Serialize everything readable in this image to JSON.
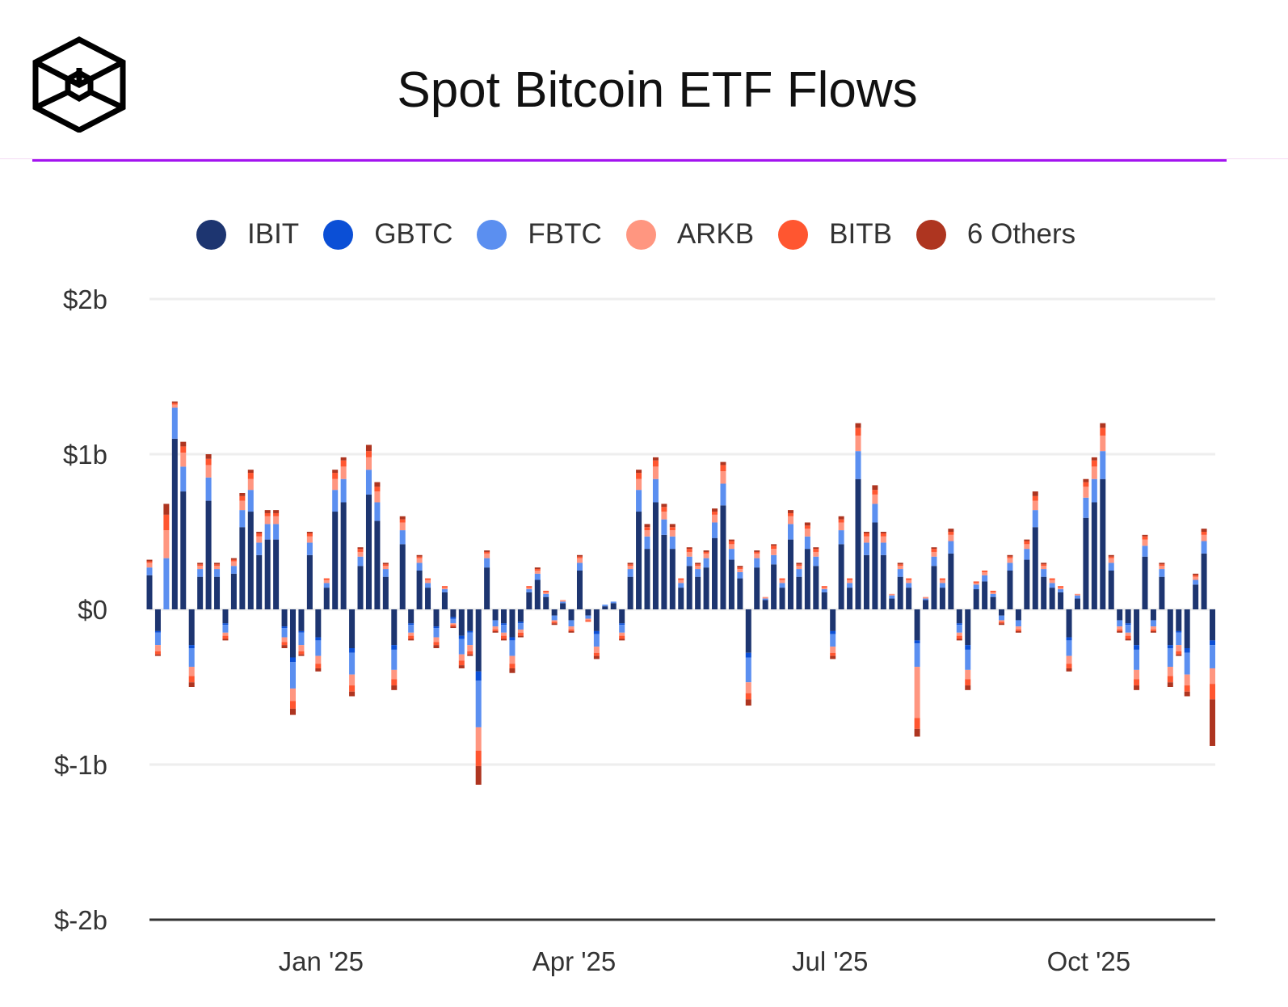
{
  "header": {
    "title": "Spot Bitcoin ETF Flows"
  },
  "colors": {
    "accent": "#a313f0"
  },
  "chart_data": {
    "type": "bar",
    "stacked": true,
    "title": "Spot Bitcoin ETF Flows",
    "xlabel": "",
    "ylabel": "",
    "units": "USD millions",
    "xlim": [
      "2024-11-01",
      "2025-11-15"
    ],
    "ylim": [
      -2000,
      2000
    ],
    "y_ticks": [
      2000,
      1000,
      0,
      -1000,
      -2000
    ],
    "y_tick_labels": [
      "$2b",
      "$1b",
      "$0",
      "$-1b",
      "$-2b"
    ],
    "x_ticks": [
      "2025-01-01",
      "2025-04-01",
      "2025-07-01",
      "2025-10-01"
    ],
    "x_tick_labels": [
      "Jan '25",
      "Apr '25",
      "Jul '25",
      "Oct '25"
    ],
    "grid": true,
    "legend_position": "top",
    "dates": [
      "2024-11-01",
      "2024-11-04",
      "2024-11-07",
      "2024-11-10",
      "2024-11-13",
      "2024-11-16",
      "2024-11-19",
      "2024-11-22",
      "2024-11-25",
      "2024-11-28",
      "2024-12-01",
      "2024-12-04",
      "2024-12-07",
      "2024-12-10",
      "2024-12-13",
      "2024-12-16",
      "2024-12-19",
      "2024-12-22",
      "2024-12-25",
      "2024-12-28",
      "2024-12-31",
      "2025-01-03",
      "2025-01-06",
      "2025-01-09",
      "2025-01-12",
      "2025-01-15",
      "2025-01-18",
      "2025-01-21",
      "2025-01-24",
      "2025-01-27",
      "2025-01-30",
      "2025-02-02",
      "2025-02-05",
      "2025-02-08",
      "2025-02-11",
      "2025-02-14",
      "2025-02-17",
      "2025-02-20",
      "2025-02-23",
      "2025-02-26",
      "2025-03-01",
      "2025-03-04",
      "2025-03-07",
      "2025-03-10",
      "2025-03-13",
      "2025-03-16",
      "2025-03-19",
      "2025-03-22",
      "2025-03-25",
      "2025-03-28",
      "2025-03-31",
      "2025-04-03",
      "2025-04-06",
      "2025-04-09",
      "2025-04-12",
      "2025-04-15",
      "2025-04-18",
      "2025-04-21",
      "2025-04-24",
      "2025-04-27",
      "2025-04-30",
      "2025-05-03",
      "2025-05-06",
      "2025-05-09",
      "2025-05-12",
      "2025-05-15",
      "2025-05-18",
      "2025-05-21",
      "2025-05-24",
      "2025-05-27",
      "2025-05-30",
      "2025-06-02",
      "2025-06-05",
      "2025-06-08",
      "2025-06-11",
      "2025-06-14",
      "2025-06-17",
      "2025-06-20",
      "2025-06-23",
      "2025-06-26",
      "2025-06-29",
      "2025-07-02",
      "2025-07-05",
      "2025-07-08",
      "2025-07-11",
      "2025-07-14",
      "2025-07-17",
      "2025-07-20",
      "2025-07-23",
      "2025-07-26",
      "2025-07-29",
      "2025-08-01",
      "2025-08-04",
      "2025-08-07",
      "2025-08-10",
      "2025-08-13",
      "2025-08-16",
      "2025-08-19",
      "2025-08-22",
      "2025-08-25",
      "2025-08-28",
      "2025-08-31",
      "2025-09-03",
      "2025-09-06",
      "2025-09-09",
      "2025-09-12",
      "2025-09-15",
      "2025-09-18",
      "2025-09-21",
      "2025-09-24",
      "2025-09-27",
      "2025-09-30",
      "2025-10-03",
      "2025-10-06",
      "2025-10-09",
      "2025-10-12",
      "2025-10-15",
      "2025-10-18",
      "2025-10-21",
      "2025-10-24",
      "2025-10-27",
      "2025-10-30",
      "2025-11-02",
      "2025-11-05",
      "2025-11-08",
      "2025-11-11",
      "2025-11-14"
    ],
    "series": [
      {
        "name": "IBIT",
        "color": "#1d3570",
        "values": [
          220,
          -140,
          0,
          1100,
          760,
          -230,
          210,
          700,
          210,
          -90,
          230,
          530,
          630,
          350,
          450,
          450,
          -110,
          -310,
          -140,
          350,
          -180,
          140,
          630,
          690,
          -250,
          280,
          740,
          570,
          210,
          -230,
          420,
          -90,
          250,
          140,
          -110,
          110,
          -50,
          -170,
          -140,
          -400,
          270,
          -70,
          -90,
          -180,
          -80,
          110,
          190,
          80,
          -40,
          40,
          -70,
          250,
          -40,
          -140,
          20,
          40,
          -90,
          210,
          630,
          390,
          690,
          480,
          390,
          140,
          280,
          210,
          270,
          460,
          670,
          320,
          200,
          -280,
          270,
          60,
          290,
          140,
          450,
          210,
          390,
          280,
          110,
          -140,
          420,
          140,
          840,
          350,
          560,
          350,
          70,
          210,
          140,
          -200,
          60,
          280,
          140,
          360,
          -90,
          -230,
          130,
          180,
          80,
          -40,
          250,
          -70,
          320,
          530,
          210,
          140,
          110,
          -180,
          70,
          590,
          690,
          840,
          250,
          -70,
          -90,
          -230,
          340,
          -70,
          210,
          -230,
          -140,
          -250,
          160,
          360,
          -200
        ]
      },
      {
        "name": "GBTC",
        "color": "#0b4fd6",
        "values": [
          0,
          -10,
          0,
          0,
          0,
          -20,
          0,
          0,
          0,
          -10,
          0,
          0,
          0,
          0,
          0,
          0,
          -10,
          -30,
          -10,
          0,
          -20,
          0,
          0,
          0,
          -30,
          0,
          0,
          0,
          0,
          -30,
          0,
          -10,
          0,
          0,
          -10,
          0,
          -10,
          -20,
          -10,
          -60,
          0,
          0,
          -10,
          -20,
          -10,
          0,
          0,
          0,
          0,
          0,
          0,
          0,
          0,
          -20,
          0,
          0,
          -10,
          0,
          0,
          0,
          0,
          0,
          0,
          0,
          0,
          0,
          0,
          0,
          0,
          0,
          0,
          -30,
          0,
          0,
          0,
          0,
          0,
          0,
          0,
          0,
          0,
          -20,
          0,
          0,
          0,
          0,
          0,
          0,
          0,
          0,
          0,
          -20,
          0,
          0,
          0,
          0,
          -10,
          -30,
          0,
          0,
          0,
          0,
          0,
          0,
          0,
          0,
          0,
          0,
          0,
          -20,
          0,
          0,
          0,
          0,
          0,
          0,
          -10,
          -30,
          0,
          0,
          0,
          -20,
          -10,
          -30,
          0,
          0,
          -30
        ]
      },
      {
        "name": "FBTC",
        "color": "#5b8ff0",
        "values": [
          50,
          -80,
          330,
          200,
          160,
          -120,
          50,
          150,
          50,
          -50,
          50,
          110,
          140,
          80,
          100,
          100,
          -60,
          -170,
          -80,
          80,
          -100,
          30,
          140,
          150,
          -140,
          60,
          160,
          120,
          50,
          -130,
          90,
          -50,
          50,
          30,
          -60,
          20,
          -30,
          -100,
          -80,
          -300,
          60,
          -40,
          -50,
          -100,
          -40,
          20,
          40,
          20,
          -30,
          10,
          -40,
          50,
          -20,
          -80,
          10,
          10,
          -50,
          50,
          140,
          80,
          150,
          100,
          80,
          30,
          60,
          50,
          60,
          100,
          140,
          70,
          40,
          -160,
          60,
          10,
          60,
          30,
          100,
          50,
          80,
          60,
          20,
          -80,
          90,
          30,
          180,
          80,
          120,
          80,
          20,
          50,
          30,
          -150,
          10,
          60,
          30,
          80,
          -50,
          -130,
          30,
          40,
          20,
          -30,
          50,
          -40,
          70,
          110,
          50,
          30,
          20,
          -100,
          20,
          130,
          150,
          180,
          50,
          -40,
          -50,
          -130,
          70,
          -40,
          50,
          -120,
          -80,
          -140,
          30,
          80,
          -150
        ]
      },
      {
        "name": "ARKB",
        "color": "#ff9680",
        "values": [
          30,
          -40,
          180,
          20,
          90,
          -60,
          20,
          80,
          20,
          -20,
          30,
          60,
          70,
          40,
          50,
          50,
          -30,
          -80,
          -40,
          40,
          -50,
          20,
          70,
          80,
          -70,
          30,
          80,
          70,
          20,
          -60,
          50,
          -20,
          30,
          20,
          -30,
          10,
          -10,
          -40,
          -40,
          -150,
          30,
          -20,
          -20,
          -50,
          -20,
          10,
          20,
          10,
          -10,
          10,
          -20,
          30,
          -10,
          -40,
          0,
          0,
          -20,
          20,
          70,
          40,
          80,
          50,
          40,
          20,
          30,
          20,
          30,
          50,
          80,
          30,
          20,
          -70,
          30,
          10,
          40,
          20,
          50,
          20,
          50,
          30,
          10,
          -40,
          50,
          20,
          100,
          40,
          60,
          40,
          10,
          20,
          20,
          -330,
          10,
          30,
          20,
          40,
          -20,
          -60,
          10,
          20,
          10,
          -10,
          30,
          -20,
          30,
          60,
          20,
          20,
          10,
          -50,
          10,
          70,
          80,
          100,
          30,
          -20,
          -20,
          -60,
          40,
          -20,
          20,
          -60,
          -40,
          -70,
          20,
          40,
          -100
        ]
      },
      {
        "name": "BITB",
        "color": "#ff5630",
        "values": [
          10,
          -20,
          100,
          10,
          40,
          -40,
          10,
          40,
          10,
          -20,
          10,
          30,
          40,
          20,
          20,
          20,
          -20,
          -50,
          -20,
          20,
          -30,
          10,
          40,
          40,
          -40,
          20,
          40,
          30,
          10,
          -40,
          20,
          -20,
          10,
          10,
          -20,
          10,
          -10,
          -30,
          -20,
          -100,
          10,
          -10,
          -20,
          -30,
          -20,
          10,
          10,
          10,
          -10,
          0,
          -10,
          10,
          -10,
          -20,
          0,
          0,
          -20,
          10,
          40,
          20,
          40,
          30,
          20,
          10,
          20,
          10,
          10,
          20,
          40,
          20,
          10,
          -40,
          10,
          0,
          20,
          10,
          20,
          10,
          20,
          20,
          10,
          -20,
          20,
          10,
          50,
          20,
          30,
          20,
          0,
          10,
          10,
          -70,
          0,
          20,
          10,
          20,
          -20,
          -40,
          10,
          10,
          10,
          -10,
          10,
          -10,
          20,
          30,
          10,
          10,
          10,
          -30,
          0,
          30,
          40,
          50,
          10,
          -10,
          -20,
          -40,
          20,
          -10,
          10,
          -40,
          -20,
          -40,
          10,
          20,
          -100
        ]
      },
      {
        "name": "6 Others",
        "color": "#ae3520",
        "values": [
          10,
          -10,
          70,
          10,
          30,
          -30,
          10,
          30,
          10,
          -10,
          10,
          20,
          20,
          10,
          20,
          20,
          -20,
          -40,
          -10,
          10,
          -20,
          0,
          20,
          20,
          -30,
          10,
          40,
          30,
          10,
          -30,
          20,
          -10,
          10,
          0,
          -20,
          0,
          -10,
          -20,
          -10,
          -120,
          10,
          -10,
          -10,
          -30,
          -10,
          0,
          10,
          0,
          -10,
          0,
          -10,
          10,
          0,
          -20,
          0,
          0,
          -10,
          10,
          20,
          20,
          20,
          20,
          20,
          0,
          10,
          10,
          10,
          20,
          20,
          10,
          10,
          -40,
          10,
          0,
          10,
          0,
          20,
          10,
          20,
          10,
          0,
          -20,
          20,
          0,
          30,
          10,
          30,
          10,
          0,
          10,
          0,
          -50,
          0,
          10,
          0,
          20,
          -10,
          -30,
          0,
          0,
          0,
          -10,
          10,
          -10,
          10,
          30,
          10,
          0,
          0,
          -20,
          0,
          20,
          20,
          30,
          10,
          -10,
          -10,
          -30,
          10,
          -10,
          10,
          -30,
          -10,
          -30,
          10,
          20,
          -300
        ]
      }
    ]
  }
}
